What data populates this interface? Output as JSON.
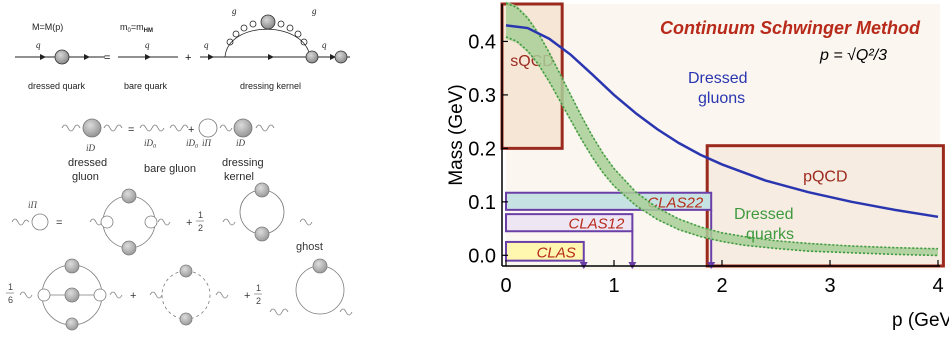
{
  "feynman": {
    "quark_row": {
      "label_dressed_mass": "M=M(p)",
      "label_bare_mass": "m",
      "label_bare_mass_sub": "0",
      "label_bare_mass_eq": "=m",
      "label_bare_mass_sub2": "HM",
      "q_labels": [
        "q",
        "q",
        "q",
        "q"
      ],
      "g_labels": [
        "g",
        "g"
      ],
      "plus": "+",
      "equals": "=",
      "captions": [
        "dressed quark",
        "bare quark",
        "dressing  kernel"
      ]
    },
    "gluon_row": {
      "iD": "iD",
      "iD0": "iD",
      "iD0_sub": "0",
      "iPi": "iΠ",
      "equals": "=",
      "plus": "+",
      "captions": [
        "dressed",
        "gluon",
        "bare gluon",
        "dressing",
        "kernel"
      ]
    },
    "self_energy": {
      "label": "iΠ",
      "equals": "=",
      "plus_half": "+",
      "half_num": "1",
      "half_den": "2",
      "ghost": "ghost",
      "sixth_num": "1",
      "sixth_den": "6"
    }
  },
  "chart_data": {
    "type": "line",
    "title": "Continuum Schwinger Method",
    "formula": "p = √Q²/3",
    "xlabel": "p (GeV)",
    "ylabel": "Mass (GeV)",
    "xlim": [
      0,
      4
    ],
    "ylim": [
      -0.02,
      0.47
    ],
    "xticks": [
      "0",
      "1",
      "2",
      "3",
      "4"
    ],
    "yticks": [
      "0.0",
      "0.1",
      "0.2",
      "0.3",
      "0.4"
    ],
    "series": [
      {
        "name": "Dressed gluons",
        "color": "#2a36b0",
        "x": [
          0,
          0.2,
          0.4,
          0.6,
          0.8,
          1.0,
          1.2,
          1.4,
          1.6,
          1.8,
          2.0,
          2.4,
          2.8,
          3.2,
          3.6,
          4.0
        ],
        "y": [
          0.43,
          0.425,
          0.405,
          0.375,
          0.338,
          0.3,
          0.266,
          0.236,
          0.21,
          0.188,
          0.17,
          0.14,
          0.118,
          0.1,
          0.085,
          0.072
        ]
      },
      {
        "name": "Dressed quarks",
        "color": "#3e9a3e",
        "band_color": "#a8cf98",
        "x": [
          0,
          0.1,
          0.2,
          0.3,
          0.4,
          0.5,
          0.6,
          0.7,
          0.8,
          0.9,
          1.0,
          1.2,
          1.4,
          1.6,
          1.8,
          2.0,
          2.2,
          2.5,
          2.8,
          3.2,
          3.6,
          4.0
        ],
        "y": [
          0.44,
          0.432,
          0.413,
          0.386,
          0.352,
          0.314,
          0.276,
          0.238,
          0.203,
          0.172,
          0.146,
          0.106,
          0.078,
          0.058,
          0.044,
          0.034,
          0.027,
          0.02,
          0.015,
          0.011,
          0.008,
          0.006
        ],
        "width": [
          0.035,
          0.035,
          0.034,
          0.032,
          0.03,
          0.028,
          0.026,
          0.024,
          0.022,
          0.02,
          0.018,
          0.014,
          0.012,
          0.011,
          0.01,
          0.009,
          0.009,
          0.008,
          0.008,
          0.007,
          0.007,
          0.007
        ]
      }
    ],
    "regions": [
      {
        "name": "sQCD",
        "x": [
          0,
          0.52
        ],
        "y": [
          0.2,
          0.47
        ],
        "color": "#9b2a1e",
        "fill": "#f5e6d6"
      },
      {
        "name": "pQCD",
        "x": [
          1.9,
          4.05
        ],
        "y": [
          -0.02,
          0.205
        ],
        "color": "#9b2a1e",
        "fill": "#f7ece2"
      }
    ],
    "experiments": [
      {
        "name": "CLAS22",
        "x": [
          0,
          1.9
        ],
        "y": [
          0.085,
          0.117
        ],
        "fill": "#c7e2e2",
        "edge": "#6a3fa8"
      },
      {
        "name": "CLAS12",
        "x": [
          0,
          1.17
        ],
        "y": [
          0.045,
          0.077
        ],
        "fill": "#efe6f4",
        "edge": "#6a3fa8"
      },
      {
        "name": "CLAS",
        "x": [
          0,
          0.72
        ],
        "y": [
          -0.01,
          0.025
        ],
        "fill": "#fff7b0",
        "edge": "#6a3fa8"
      }
    ],
    "annotations": {
      "gluons": [
        "Dressed",
        "gluons"
      ],
      "quarks": [
        "Dressed",
        "quarks"
      ]
    },
    "colors": {
      "title": "#b82a1a",
      "region_label": "#9b2a1e",
      "exp_label": "#b82a1a"
    }
  }
}
